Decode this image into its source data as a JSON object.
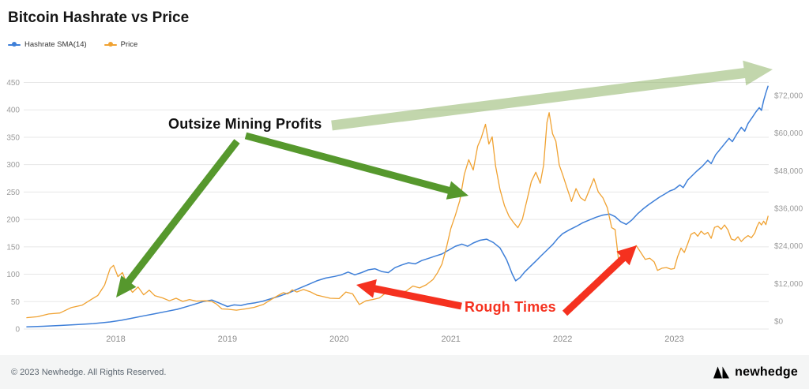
{
  "title": "Bitcoin Hashrate vs Price",
  "legend": [
    {
      "label": "Hashrate SMA(14)",
      "color": "#3e7fd8"
    },
    {
      "label": "Price",
      "color": "#f0a232"
    }
  ],
  "chart_data": {
    "type": "line",
    "title": "Bitcoin Hashrate vs Price",
    "x_ticks": [
      "2018",
      "2019",
      "2020",
      "2021",
      "2022",
      "2023"
    ],
    "x_range": [
      2017.2,
      2023.84
    ],
    "grid": "horizontal",
    "legend_position": "top-left",
    "left_axis": {
      "name": "Hashrate SMA(14)",
      "ticks": [
        0,
        50,
        100,
        150,
        200,
        250,
        300,
        350,
        400,
        450
      ],
      "range": [
        0,
        474
      ]
    },
    "right_axis": {
      "name": "Price (USD)",
      "tick_values": [
        0,
        12000,
        24000,
        36000,
        48000,
        60000,
        72000
      ],
      "tick_labels": [
        "$0",
        "$12,000",
        "$24,000",
        "$36,000",
        "$48,000",
        "$60,000",
        "$72,000"
      ],
      "range": [
        0,
        86000
      ]
    },
    "series": [
      {
        "name": "Hashrate SMA(14)",
        "axis": "left",
        "color": "#3e7fd8",
        "points": [
          [
            2017.2,
            4
          ],
          [
            2017.35,
            5
          ],
          [
            2017.5,
            6.5
          ],
          [
            2017.65,
            8
          ],
          [
            2017.8,
            10
          ],
          [
            2017.95,
            13
          ],
          [
            2018.05,
            16
          ],
          [
            2018.15,
            20
          ],
          [
            2018.25,
            24
          ],
          [
            2018.35,
            28
          ],
          [
            2018.45,
            32
          ],
          [
            2018.55,
            36
          ],
          [
            2018.62,
            40
          ],
          [
            2018.7,
            45
          ],
          [
            2018.78,
            50
          ],
          [
            2018.86,
            53
          ],
          [
            2018.92,
            48
          ],
          [
            2019.0,
            41
          ],
          [
            2019.06,
            44
          ],
          [
            2019.12,
            43
          ],
          [
            2019.18,
            46
          ],
          [
            2019.25,
            48
          ],
          [
            2019.32,
            51
          ],
          [
            2019.4,
            56
          ],
          [
            2019.48,
            61
          ],
          [
            2019.56,
            67
          ],
          [
            2019.64,
            74
          ],
          [
            2019.72,
            81
          ],
          [
            2019.8,
            88
          ],
          [
            2019.88,
            93
          ],
          [
            2019.96,
            96
          ],
          [
            2020.02,
            99
          ],
          [
            2020.08,
            104
          ],
          [
            2020.14,
            99
          ],
          [
            2020.2,
            103
          ],
          [
            2020.26,
            108
          ],
          [
            2020.32,
            110
          ],
          [
            2020.38,
            105
          ],
          [
            2020.44,
            103
          ],
          [
            2020.5,
            112
          ],
          [
            2020.56,
            117
          ],
          [
            2020.62,
            121
          ],
          [
            2020.68,
            119
          ],
          [
            2020.74,
            125
          ],
          [
            2020.8,
            129
          ],
          [
            2020.86,
            133
          ],
          [
            2020.92,
            137
          ],
          [
            2020.98,
            144
          ],
          [
            2021.04,
            151
          ],
          [
            2021.1,
            155
          ],
          [
            2021.15,
            151
          ],
          [
            2021.2,
            157
          ],
          [
            2021.26,
            162
          ],
          [
            2021.32,
            164
          ],
          [
            2021.38,
            158
          ],
          [
            2021.44,
            148
          ],
          [
            2021.5,
            126
          ],
          [
            2021.55,
            100
          ],
          [
            2021.58,
            88
          ],
          [
            2021.62,
            94
          ],
          [
            2021.66,
            104
          ],
          [
            2021.71,
            114
          ],
          [
            2021.76,
            124
          ],
          [
            2021.81,
            134
          ],
          [
            2021.86,
            144
          ],
          [
            2021.91,
            154
          ],
          [
            2021.96,
            166
          ],
          [
            2022.0,
            174
          ],
          [
            2022.06,
            181
          ],
          [
            2022.12,
            187
          ],
          [
            2022.18,
            194
          ],
          [
            2022.24,
            199
          ],
          [
            2022.3,
            204
          ],
          [
            2022.36,
            208
          ],
          [
            2022.42,
            210
          ],
          [
            2022.47,
            205
          ],
          [
            2022.52,
            196
          ],
          [
            2022.57,
            191
          ],
          [
            2022.62,
            199
          ],
          [
            2022.67,
            210
          ],
          [
            2022.72,
            219
          ],
          [
            2022.77,
            227
          ],
          [
            2022.82,
            234
          ],
          [
            2022.87,
            241
          ],
          [
            2022.92,
            247
          ],
          [
            2022.96,
            252
          ],
          [
            2023.0,
            255
          ],
          [
            2023.05,
            263
          ],
          [
            2023.08,
            258
          ],
          [
            2023.12,
            272
          ],
          [
            2023.16,
            280
          ],
          [
            2023.2,
            288
          ],
          [
            2023.25,
            297
          ],
          [
            2023.3,
            308
          ],
          [
            2023.33,
            302
          ],
          [
            2023.37,
            318
          ],
          [
            2023.41,
            328
          ],
          [
            2023.45,
            338
          ],
          [
            2023.49,
            348
          ],
          [
            2023.52,
            342
          ],
          [
            2023.56,
            356
          ],
          [
            2023.6,
            368
          ],
          [
            2023.63,
            361
          ],
          [
            2023.66,
            375
          ],
          [
            2023.7,
            387
          ],
          [
            2023.73,
            396
          ],
          [
            2023.76,
            404
          ],
          [
            2023.78,
            399
          ],
          [
            2023.8,
            417
          ],
          [
            2023.82,
            431
          ],
          [
            2023.84,
            444
          ]
        ]
      },
      {
        "name": "Price",
        "axis": "right",
        "color": "#f0a232",
        "points": [
          [
            2017.2,
            1100
          ],
          [
            2017.3,
            1400
          ],
          [
            2017.4,
            2300
          ],
          [
            2017.5,
            2600
          ],
          [
            2017.6,
            4300
          ],
          [
            2017.7,
            5100
          ],
          [
            2017.78,
            6900
          ],
          [
            2017.84,
            8200
          ],
          [
            2017.9,
            11500
          ],
          [
            2017.95,
            16800
          ],
          [
            2017.98,
            17800
          ],
          [
            2018.02,
            14200
          ],
          [
            2018.06,
            15500
          ],
          [
            2018.1,
            11800
          ],
          [
            2018.15,
            9200
          ],
          [
            2018.2,
            10900
          ],
          [
            2018.25,
            8400
          ],
          [
            2018.3,
            9900
          ],
          [
            2018.35,
            8100
          ],
          [
            2018.42,
            7400
          ],
          [
            2018.48,
            6500
          ],
          [
            2018.54,
            7300
          ],
          [
            2018.6,
            6300
          ],
          [
            2018.66,
            6900
          ],
          [
            2018.72,
            6400
          ],
          [
            2018.8,
            6500
          ],
          [
            2018.86,
            6300
          ],
          [
            2018.9,
            5500
          ],
          [
            2018.95,
            3900
          ],
          [
            2019.0,
            3800
          ],
          [
            2019.08,
            3500
          ],
          [
            2019.16,
            3900
          ],
          [
            2019.24,
            4400
          ],
          [
            2019.32,
            5300
          ],
          [
            2019.4,
            7100
          ],
          [
            2019.46,
            8300
          ],
          [
            2019.5,
            9100
          ],
          [
            2019.54,
            8700
          ],
          [
            2019.58,
            10000
          ],
          [
            2019.62,
            9300
          ],
          [
            2019.68,
            10100
          ],
          [
            2019.74,
            9400
          ],
          [
            2019.8,
            8300
          ],
          [
            2019.86,
            7800
          ],
          [
            2019.92,
            7300
          ],
          [
            2020.0,
            7200
          ],
          [
            2020.06,
            9300
          ],
          [
            2020.12,
            8700
          ],
          [
            2020.18,
            5300
          ],
          [
            2020.24,
            6500
          ],
          [
            2020.3,
            6900
          ],
          [
            2020.36,
            7400
          ],
          [
            2020.42,
            9100
          ],
          [
            2020.48,
            9300
          ],
          [
            2020.54,
            9000
          ],
          [
            2020.6,
            9600
          ],
          [
            2020.66,
            11200
          ],
          [
            2020.72,
            10600
          ],
          [
            2020.78,
            11600
          ],
          [
            2020.84,
            13300
          ],
          [
            2020.88,
            15400
          ],
          [
            2020.92,
            18200
          ],
          [
            2020.96,
            23400
          ],
          [
            2021.0,
            29600
          ],
          [
            2021.04,
            33800
          ],
          [
            2021.08,
            38500
          ],
          [
            2021.12,
            46800
          ],
          [
            2021.16,
            51500
          ],
          [
            2021.2,
            48200
          ],
          [
            2021.24,
            55800
          ],
          [
            2021.27,
            58300
          ],
          [
            2021.31,
            62800
          ],
          [
            2021.34,
            56500
          ],
          [
            2021.37,
            58800
          ],
          [
            2021.4,
            49500
          ],
          [
            2021.44,
            42000
          ],
          [
            2021.48,
            36800
          ],
          [
            2021.52,
            33500
          ],
          [
            2021.56,
            31500
          ],
          [
            2021.6,
            29800
          ],
          [
            2021.64,
            32500
          ],
          [
            2021.68,
            38500
          ],
          [
            2021.72,
            44500
          ],
          [
            2021.76,
            47500
          ],
          [
            2021.8,
            44000
          ],
          [
            2021.83,
            49800
          ],
          [
            2021.86,
            63400
          ],
          [
            2021.88,
            66500
          ],
          [
            2021.91,
            59800
          ],
          [
            2021.94,
            57400
          ],
          [
            2021.97,
            49800
          ],
          [
            2022.0,
            46800
          ],
          [
            2022.04,
            42400
          ],
          [
            2022.08,
            38200
          ],
          [
            2022.12,
            42300
          ],
          [
            2022.16,
            39400
          ],
          [
            2022.2,
            38400
          ],
          [
            2022.24,
            41900
          ],
          [
            2022.28,
            45500
          ],
          [
            2022.32,
            41200
          ],
          [
            2022.36,
            39400
          ],
          [
            2022.4,
            36200
          ],
          [
            2022.44,
            29800
          ],
          [
            2022.47,
            29200
          ],
          [
            2022.5,
            19800
          ],
          [
            2022.54,
            20400
          ],
          [
            2022.58,
            22400
          ],
          [
            2022.62,
            23100
          ],
          [
            2022.66,
            24100
          ],
          [
            2022.7,
            21900
          ],
          [
            2022.74,
            19700
          ],
          [
            2022.78,
            20100
          ],
          [
            2022.82,
            18900
          ],
          [
            2022.85,
            16200
          ],
          [
            2022.89,
            16900
          ],
          [
            2022.93,
            17100
          ],
          [
            2022.97,
            16600
          ],
          [
            2023.0,
            16800
          ],
          [
            2023.03,
            20600
          ],
          [
            2023.06,
            23300
          ],
          [
            2023.09,
            21900
          ],
          [
            2023.12,
            24700
          ],
          [
            2023.15,
            27700
          ],
          [
            2023.18,
            28300
          ],
          [
            2023.21,
            27100
          ],
          [
            2023.24,
            28700
          ],
          [
            2023.27,
            27700
          ],
          [
            2023.3,
            28300
          ],
          [
            2023.33,
            26400
          ],
          [
            2023.36,
            29900
          ],
          [
            2023.39,
            30300
          ],
          [
            2023.42,
            29300
          ],
          [
            2023.45,
            30700
          ],
          [
            2023.48,
            29100
          ],
          [
            2023.51,
            26200
          ],
          [
            2023.54,
            25800
          ],
          [
            2023.57,
            26900
          ],
          [
            2023.6,
            25400
          ],
          [
            2023.63,
            26500
          ],
          [
            2023.66,
            27300
          ],
          [
            2023.69,
            26600
          ],
          [
            2023.72,
            28100
          ],
          [
            2023.74,
            30100
          ],
          [
            2023.76,
            31600
          ],
          [
            2023.78,
            30700
          ],
          [
            2023.8,
            31900
          ],
          [
            2023.82,
            30800
          ],
          [
            2023.84,
            33600
          ]
        ]
      }
    ]
  },
  "annotations": {
    "outsize": {
      "text": "Outsize Mining Profits",
      "color": "#111111"
    },
    "rough": {
      "text": "Rough Times",
      "color": "#f5311f"
    },
    "arrows": [
      {
        "name": "outsize-arrow-to-2018-peak",
        "color": "#56982d",
        "opacity": 1,
        "from": [
          300,
          179
        ],
        "to": [
          147,
          377
        ],
        "shaft": 4.5,
        "head_w": 12,
        "head_l": 26
      },
      {
        "name": "outsize-arrow-to-2021-peak",
        "color": "#56982d",
        "opacity": 1,
        "from": [
          311,
          172
        ],
        "to": [
          593,
          248
        ],
        "shaft": 4.5,
        "head_w": 12,
        "head_l": 26
      },
      {
        "name": "uptrend-arrow",
        "color": "#8fb468",
        "opacity": 0.55,
        "from": [
          420,
          159
        ],
        "to": [
          978,
          88
        ],
        "shaft": 6.5,
        "head_w": 16,
        "head_l": 36
      },
      {
        "name": "rough-arrow-left",
        "color": "#f5311f",
        "opacity": 1,
        "from": [
          584,
          388
        ],
        "to": [
          451,
          361
        ],
        "shaft": 4.5,
        "head_w": 12,
        "head_l": 24
      },
      {
        "name": "rough-arrow-right",
        "color": "#f5311f",
        "opacity": 1,
        "from": [
          715,
          397
        ],
        "to": [
          806,
          311
        ],
        "shaft": 4.5,
        "head_w": 12,
        "head_l": 24
      }
    ]
  },
  "footer": {
    "copyright": "© 2023 Newhedge. All Rights Reserved.",
    "brand": "newhedge"
  }
}
